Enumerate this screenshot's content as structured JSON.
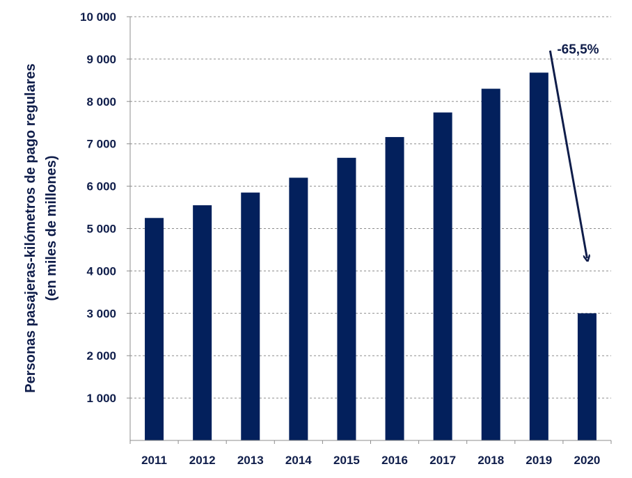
{
  "chart_data": {
    "type": "bar",
    "categories": [
      "2011",
      "2012",
      "2013",
      "2014",
      "2015",
      "2016",
      "2017",
      "2018",
      "2019",
      "2020"
    ],
    "values": [
      5250,
      5550,
      5850,
      6200,
      6670,
      7160,
      7740,
      8300,
      8680,
      3000
    ],
    "ylabel_line1": "Personas pasajeras-kilómetros de pago regulares",
    "ylabel_line2": "(en miles de millones)",
    "ylim": [
      0,
      10000
    ],
    "yticks": [
      {
        "value": 1000,
        "label": "1 000"
      },
      {
        "value": 2000,
        "label": "2 000"
      },
      {
        "value": 3000,
        "label": "3 000"
      },
      {
        "value": 4000,
        "label": "4 000"
      },
      {
        "value": 5000,
        "label": "5 000"
      },
      {
        "value": 6000,
        "label": "6 000"
      },
      {
        "value": 7000,
        "label": "7 000"
      },
      {
        "value": 8000,
        "label": "8 000"
      },
      {
        "value": 9000,
        "label": "9 000"
      },
      {
        "value": 10000,
        "label": "10 000"
      }
    ],
    "grid": true,
    "bar_color": "#03205c",
    "annotation": {
      "label": "-65,5%",
      "from_year": "2019",
      "to_year": "2020"
    }
  }
}
